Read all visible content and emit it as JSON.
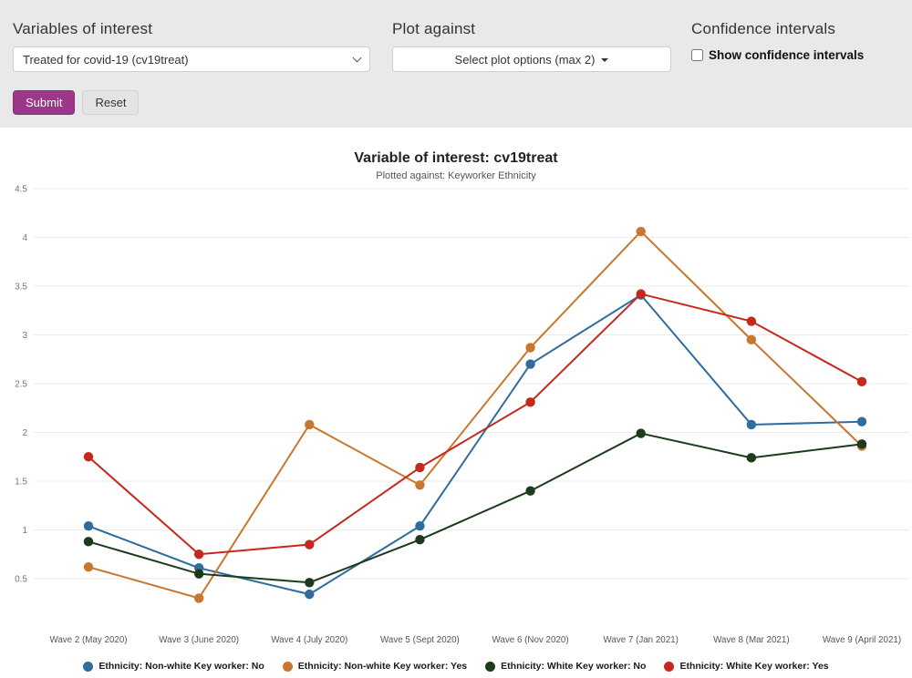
{
  "form": {
    "variables_label": "Variables of interest",
    "variables_select_value": "Treated for covid-19 (cv19treat)",
    "plot_against_label": "Plot against",
    "plot_options_button_label": "Select plot options (max 2)",
    "confidence_heading": "Confidence intervals",
    "show_ci_label": "Show confidence intervals",
    "show_ci_checked": false,
    "submit_label": "Submit",
    "reset_label": "Reset"
  },
  "ui_colors": {
    "topbar_background": "#e9e9e9",
    "submit_button": "#9d3789",
    "reset_button": "#e4e4e4"
  },
  "chart_data": {
    "type": "line",
    "title": "Variable of interest: cv19treat",
    "subtitle": "Plotted against: Keyworker Ethnicity",
    "categories": [
      "Wave 2 (May 2020)",
      "Wave 3 (June 2020)",
      "Wave 4 (July 2020)",
      "Wave 5 (Sept 2020)",
      "Wave 6 (Nov 2020)",
      "Wave 7 (Jan 2021)",
      "Wave 8 (Mar 2021)",
      "Wave 9 (April 2021)"
    ],
    "series": [
      {
        "name": "Ethnicity: Non-white Key worker: No",
        "color": "#2e6d9e",
        "values": [
          1.04,
          0.61,
          0.34,
          1.04,
          2.7,
          3.41,
          2.08,
          2.11
        ]
      },
      {
        "name": "Ethnicity: Non-white Key worker: Yes",
        "color": "#c9772f",
        "values": [
          0.62,
          0.3,
          2.08,
          1.46,
          2.87,
          4.06,
          2.95,
          1.86
        ]
      },
      {
        "name": "Ethnicity: White Key worker: No",
        "color": "#1c3b1c",
        "values": [
          0.88,
          0.55,
          0.46,
          0.9,
          1.4,
          1.99,
          1.74,
          1.88
        ]
      },
      {
        "name": "Ethnicity: White Key worker: Yes",
        "color": "#c5281c",
        "values": [
          1.75,
          0.75,
          0.85,
          1.64,
          2.31,
          3.42,
          3.14,
          2.52
        ]
      }
    ],
    "yticks": [
      0.5,
      1,
      1.5,
      2,
      2.5,
      3,
      3.5,
      4,
      4.5
    ],
    "ylim": [
      0.25,
      4.55
    ],
    "grid": true,
    "legend_position": "bottom"
  }
}
